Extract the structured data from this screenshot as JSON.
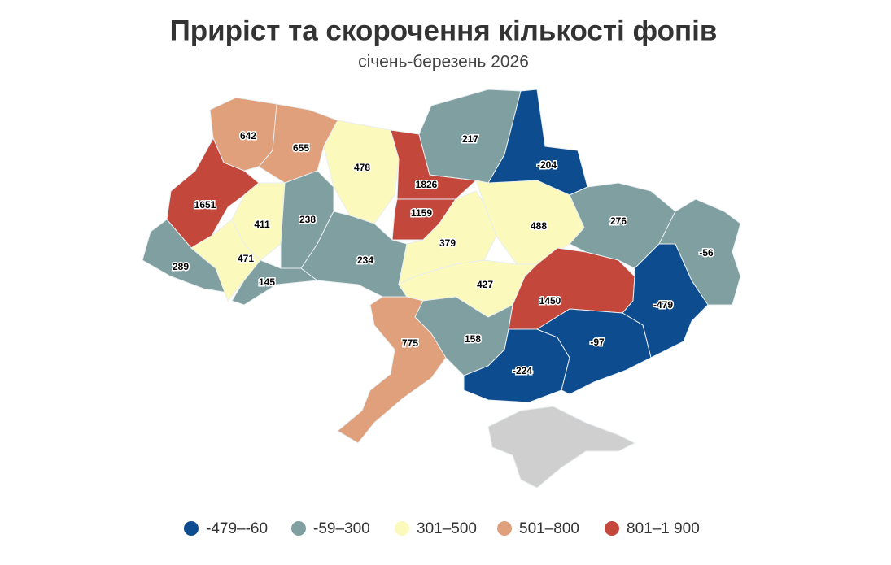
{
  "title": "Приріст та скорочення кількості фопів",
  "subtitle": "січень-березень 2026",
  "map": {
    "values": [
      642,
      655,
      478,
      1826,
      1159,
      217,
      -204,
      1651,
      411,
      238,
      289,
      471,
      145,
      234,
      379,
      488,
      276,
      -56,
      427,
      1450,
      -479,
      775,
      158,
      -224,
      -97
    ]
  },
  "legend": [
    {
      "min": -479,
      "max": -60,
      "label": "-479–-60",
      "color": "#0d4d8f"
    },
    {
      "min": -59,
      "max": 300,
      "label": "-59–300",
      "color": "#809fa1"
    },
    {
      "min": 301,
      "max": 500,
      "label": "301–500",
      "color": "#fcf9bd"
    },
    {
      "min": 501,
      "max": 800,
      "label": "501–800",
      "color": "#e0a07b"
    },
    {
      "min": 801,
      "max": 1900,
      "label": "801–1 900",
      "color": "#c4473b"
    }
  ]
}
